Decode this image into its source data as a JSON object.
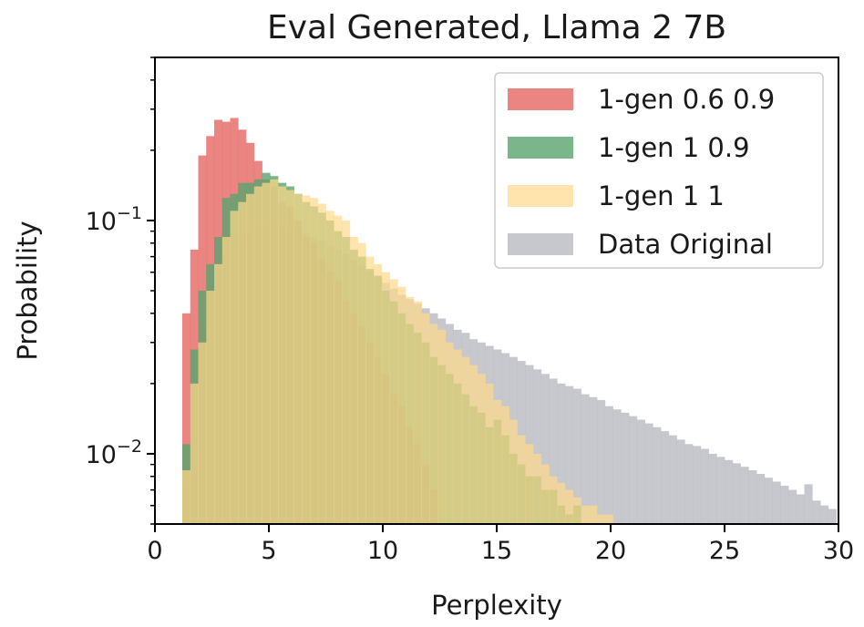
{
  "chart_data": {
    "type": "bar",
    "title": "Eval Generated, Llama 2 7B",
    "xlabel": "Perplexity",
    "ylabel": "Probability",
    "xlim": [
      0,
      30
    ],
    "ylim": [
      0.005,
      0.5
    ],
    "yscale": "log",
    "bin_width": 0.35,
    "x_ticks": [
      "0",
      "5",
      "10",
      "15",
      "20",
      "25",
      "30"
    ],
    "x_tick_values": [
      0,
      5,
      10,
      15,
      20,
      25,
      30
    ],
    "y_ticks": [
      {
        "value": 0.1,
        "base": "10",
        "exp": "−1"
      },
      {
        "value": 0.01,
        "base": "10",
        "exp": "−2"
      }
    ],
    "legend_position": "top-right",
    "grid": false,
    "series": [
      {
        "name": "1-gen 0.6 0.9",
        "color": "#e8706b",
        "opacity": 0.85,
        "bins": [
          [
            1.2,
            0.04
          ],
          [
            1.55,
            0.075
          ],
          [
            1.9,
            0.19
          ],
          [
            2.25,
            0.23
          ],
          [
            2.6,
            0.27
          ],
          [
            2.95,
            0.265
          ],
          [
            3.3,
            0.275
          ],
          [
            3.65,
            0.245
          ],
          [
            4.0,
            0.215
          ],
          [
            4.35,
            0.18
          ],
          [
            4.7,
            0.15
          ],
          [
            5.05,
            0.14
          ],
          [
            5.4,
            0.12
          ],
          [
            5.75,
            0.115
          ],
          [
            6.1,
            0.1
          ],
          [
            6.45,
            0.085
          ],
          [
            6.8,
            0.08
          ],
          [
            7.15,
            0.068
          ],
          [
            7.5,
            0.06
          ],
          [
            7.85,
            0.055
          ],
          [
            8.2,
            0.045
          ],
          [
            8.55,
            0.04
          ],
          [
            8.9,
            0.035
          ],
          [
            9.25,
            0.03
          ],
          [
            9.6,
            0.026
          ],
          [
            9.95,
            0.022
          ],
          [
            10.3,
            0.018
          ],
          [
            10.65,
            0.016
          ],
          [
            11.0,
            0.013
          ],
          [
            11.35,
            0.011
          ],
          [
            11.7,
            0.009
          ],
          [
            12.05,
            0.007
          ]
        ]
      },
      {
        "name": "1-gen 1 0.9",
        "color": "#5aa46e",
        "opacity": 0.8,
        "bins": [
          [
            1.2,
            0.011
          ],
          [
            1.55,
            0.028
          ],
          [
            1.9,
            0.05
          ],
          [
            2.25,
            0.065
          ],
          [
            2.6,
            0.085
          ],
          [
            2.95,
            0.125
          ],
          [
            3.3,
            0.13
          ],
          [
            3.65,
            0.145
          ],
          [
            4.0,
            0.145
          ],
          [
            4.35,
            0.15
          ],
          [
            4.7,
            0.16
          ],
          [
            5.05,
            0.155
          ],
          [
            5.4,
            0.145
          ],
          [
            5.75,
            0.14
          ],
          [
            6.1,
            0.13
          ],
          [
            6.45,
            0.12
          ],
          [
            6.8,
            0.115
          ],
          [
            7.15,
            0.108
          ],
          [
            7.5,
            0.1
          ],
          [
            7.85,
            0.09
          ],
          [
            8.2,
            0.085
          ],
          [
            8.55,
            0.075
          ],
          [
            8.9,
            0.07
          ],
          [
            9.25,
            0.062
          ],
          [
            9.6,
            0.058
          ],
          [
            9.95,
            0.05
          ],
          [
            10.3,
            0.045
          ],
          [
            10.65,
            0.04
          ],
          [
            11.0,
            0.036
          ],
          [
            11.35,
            0.033
          ],
          [
            11.7,
            0.03
          ],
          [
            12.05,
            0.026
          ],
          [
            12.4,
            0.024
          ],
          [
            12.75,
            0.022
          ],
          [
            13.1,
            0.02
          ],
          [
            13.45,
            0.018
          ],
          [
            13.8,
            0.016
          ],
          [
            14.15,
            0.015
          ],
          [
            14.5,
            0.013
          ],
          [
            14.85,
            0.014
          ],
          [
            15.2,
            0.012
          ],
          [
            15.55,
            0.01
          ],
          [
            15.9,
            0.009
          ],
          [
            16.25,
            0.008
          ],
          [
            16.6,
            0.008
          ],
          [
            16.95,
            0.007
          ],
          [
            17.3,
            0.007
          ],
          [
            17.65,
            0.006
          ],
          [
            18.0,
            0.0055
          ],
          [
            18.35,
            0.006
          ]
        ]
      },
      {
        "name": "1-gen 1 1",
        "color": "#ffd98a",
        "opacity": 0.7,
        "bins": [
          [
            1.2,
            0.0085
          ],
          [
            1.55,
            0.02
          ],
          [
            1.9,
            0.03
          ],
          [
            2.25,
            0.05
          ],
          [
            2.6,
            0.065
          ],
          [
            2.95,
            0.085
          ],
          [
            3.3,
            0.11
          ],
          [
            3.65,
            0.12
          ],
          [
            4.0,
            0.13
          ],
          [
            4.35,
            0.14
          ],
          [
            4.7,
            0.145
          ],
          [
            5.05,
            0.15
          ],
          [
            5.4,
            0.14
          ],
          [
            5.75,
            0.135
          ],
          [
            6.1,
            0.13
          ],
          [
            6.45,
            0.128
          ],
          [
            6.8,
            0.125
          ],
          [
            7.15,
            0.118
          ],
          [
            7.5,
            0.11
          ],
          [
            7.85,
            0.105
          ],
          [
            8.2,
            0.1
          ],
          [
            8.55,
            0.085
          ],
          [
            8.9,
            0.08
          ],
          [
            9.25,
            0.07
          ],
          [
            9.6,
            0.065
          ],
          [
            9.95,
            0.06
          ],
          [
            10.3,
            0.056
          ],
          [
            10.65,
            0.052
          ],
          [
            11.0,
            0.047
          ],
          [
            11.35,
            0.045
          ],
          [
            11.7,
            0.04
          ],
          [
            12.05,
            0.036
          ],
          [
            12.4,
            0.034
          ],
          [
            12.75,
            0.03
          ],
          [
            13.1,
            0.028
          ],
          [
            13.45,
            0.026
          ],
          [
            13.8,
            0.024
          ],
          [
            14.15,
            0.022
          ],
          [
            14.5,
            0.02
          ],
          [
            14.85,
            0.017
          ],
          [
            15.2,
            0.016
          ],
          [
            15.55,
            0.014
          ],
          [
            15.9,
            0.012
          ],
          [
            16.25,
            0.011
          ],
          [
            16.6,
            0.01
          ],
          [
            16.95,
            0.009
          ],
          [
            17.3,
            0.008
          ],
          [
            17.65,
            0.0075
          ],
          [
            18.0,
            0.007
          ],
          [
            18.35,
            0.0065
          ],
          [
            18.7,
            0.006
          ],
          [
            19.05,
            0.006
          ],
          [
            19.4,
            0.0055
          ],
          [
            19.75,
            0.0055
          ]
        ]
      },
      {
        "name": "Data Original",
        "color": "#b9bac2",
        "opacity": 0.8,
        "bins": [
          [
            1.2,
            0.007
          ],
          [
            1.55,
            0.02
          ],
          [
            1.9,
            0.035
          ],
          [
            2.25,
            0.05
          ],
          [
            2.6,
            0.062
          ],
          [
            2.95,
            0.072
          ],
          [
            3.3,
            0.08
          ],
          [
            3.65,
            0.086
          ],
          [
            4.0,
            0.09
          ],
          [
            4.35,
            0.093
          ],
          [
            4.7,
            0.094
          ],
          [
            5.05,
            0.095
          ],
          [
            5.4,
            0.094
          ],
          [
            5.75,
            0.093
          ],
          [
            6.1,
            0.09
          ],
          [
            6.45,
            0.088
          ],
          [
            6.8,
            0.085
          ],
          [
            7.15,
            0.082
          ],
          [
            7.5,
            0.078
          ],
          [
            7.85,
            0.075
          ],
          [
            8.2,
            0.072
          ],
          [
            8.55,
            0.068
          ],
          [
            8.9,
            0.064
          ],
          [
            9.25,
            0.061
          ],
          [
            9.6,
            0.057
          ],
          [
            9.95,
            0.054
          ],
          [
            10.3,
            0.051
          ],
          [
            10.65,
            0.048
          ],
          [
            11.0,
            0.046
          ],
          [
            11.35,
            0.044
          ],
          [
            11.7,
            0.042
          ],
          [
            12.05,
            0.04
          ],
          [
            12.4,
            0.038
          ],
          [
            12.75,
            0.036
          ],
          [
            13.1,
            0.034
          ],
          [
            13.45,
            0.033
          ],
          [
            13.8,
            0.031
          ],
          [
            14.15,
            0.03
          ],
          [
            14.5,
            0.029
          ],
          [
            14.85,
            0.028
          ],
          [
            15.2,
            0.027
          ],
          [
            15.55,
            0.026
          ],
          [
            15.9,
            0.025
          ],
          [
            16.25,
            0.024
          ],
          [
            16.6,
            0.023
          ],
          [
            16.95,
            0.022
          ],
          [
            17.3,
            0.021
          ],
          [
            17.65,
            0.02
          ],
          [
            18.0,
            0.0195
          ],
          [
            18.35,
            0.019
          ],
          [
            18.7,
            0.018
          ],
          [
            19.05,
            0.0175
          ],
          [
            19.4,
            0.017
          ],
          [
            19.75,
            0.016
          ],
          [
            20.1,
            0.0155
          ],
          [
            20.45,
            0.015
          ],
          [
            20.8,
            0.0145
          ],
          [
            21.15,
            0.014
          ],
          [
            21.5,
            0.0135
          ],
          [
            21.85,
            0.013
          ],
          [
            22.2,
            0.0125
          ],
          [
            22.55,
            0.012
          ],
          [
            22.9,
            0.0115
          ],
          [
            23.25,
            0.011
          ],
          [
            23.6,
            0.0108
          ],
          [
            23.95,
            0.0105
          ],
          [
            24.3,
            0.01
          ],
          [
            24.65,
            0.0097
          ],
          [
            25.0,
            0.0094
          ],
          [
            25.35,
            0.0091
          ],
          [
            25.7,
            0.0088
          ],
          [
            26.05,
            0.0085
          ],
          [
            26.4,
            0.0082
          ],
          [
            26.75,
            0.0079
          ],
          [
            27.1,
            0.0076
          ],
          [
            27.45,
            0.0073
          ],
          [
            27.8,
            0.007
          ],
          [
            28.15,
            0.0067
          ],
          [
            28.5,
            0.0074
          ],
          [
            28.85,
            0.0063
          ],
          [
            29.2,
            0.006
          ],
          [
            29.55,
            0.0058
          ]
        ]
      }
    ]
  }
}
